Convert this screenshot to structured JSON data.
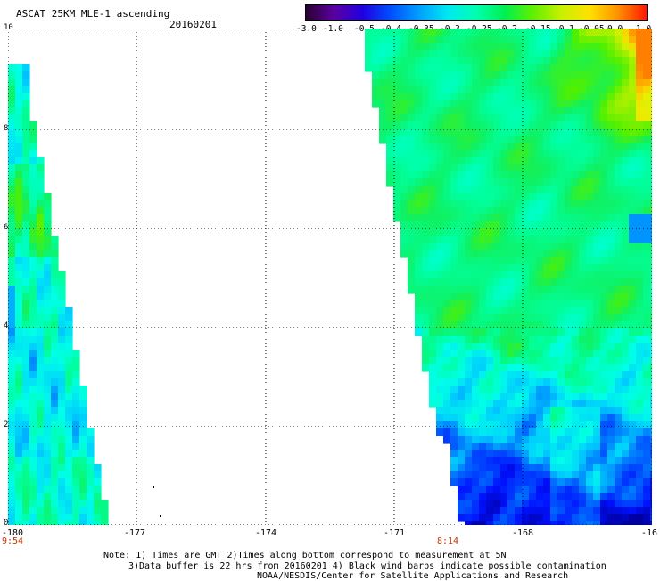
{
  "header": {
    "title": "ASCAT 25KM MLE-1 ascending",
    "date": "20160201"
  },
  "colorbar": {
    "labels": [
      "-3.0",
      "-1.0",
      "-0.5",
      "-0.4",
      "-0.35",
      "-0.3",
      "-0.25",
      "-0.2",
      "-0.15",
      "-0.1",
      "-0.05",
      "0.0",
      "1.0"
    ],
    "colors": [
      "#2a0030",
      "#5a00a0",
      "#2000e0",
      "#0050ff",
      "#00a0ff",
      "#00e8f0",
      "#00ffb0",
      "#00f050",
      "#60f000",
      "#c8f000",
      "#ffe000",
      "#ff9000",
      "#ff1800"
    ]
  },
  "axes": {
    "x_ticks": [
      "-180",
      "-177",
      "-174",
      "-171",
      "-168",
      "-16"
    ],
    "y_ticks": [
      "0",
      "2",
      "4",
      "6",
      "8",
      "10"
    ],
    "times": [
      "9:54",
      "8:14"
    ]
  },
  "notes": [
    "Note: 1) Times are GMT 2)Times along bottom correspond to measurement at 5N",
    "3)Data buffer is 22 hrs from 20160201 4) Black wind barbs indicate possible contamination",
    "NOAA/NESDIS/Center for Satellite Applications and Research"
  ]
}
